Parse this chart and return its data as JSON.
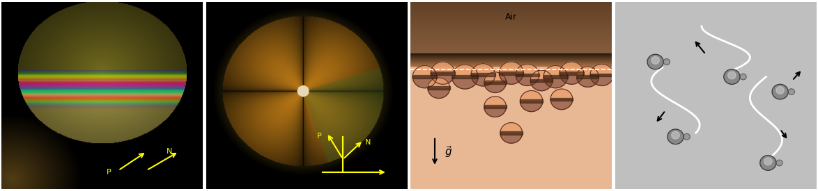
{
  "fig_width": 11.74,
  "fig_height": 2.75,
  "dpi": 100,
  "panels": 4,
  "panel_labels": [
    "panel1_bottom_view",
    "panel2_side_view",
    "panel3_floating",
    "panel4_self_propelled"
  ],
  "panel_bg_colors": [
    "#000000",
    "#000000",
    "#e8b898",
    "#c8c8c8"
  ],
  "air_label": "Air",
  "air_label_color": "#000000",
  "air_label_fontsize": 9,
  "gravity_label": "g",
  "gravity_arrow_color": "#000000",
  "yellow_color": "#ffff00",
  "dashed_line_color": "#ffffff",
  "panel_borders": [
    "#ffffff",
    "#ffffff",
    "#ffffff",
    "#ffffff"
  ],
  "border_width": 1.5
}
